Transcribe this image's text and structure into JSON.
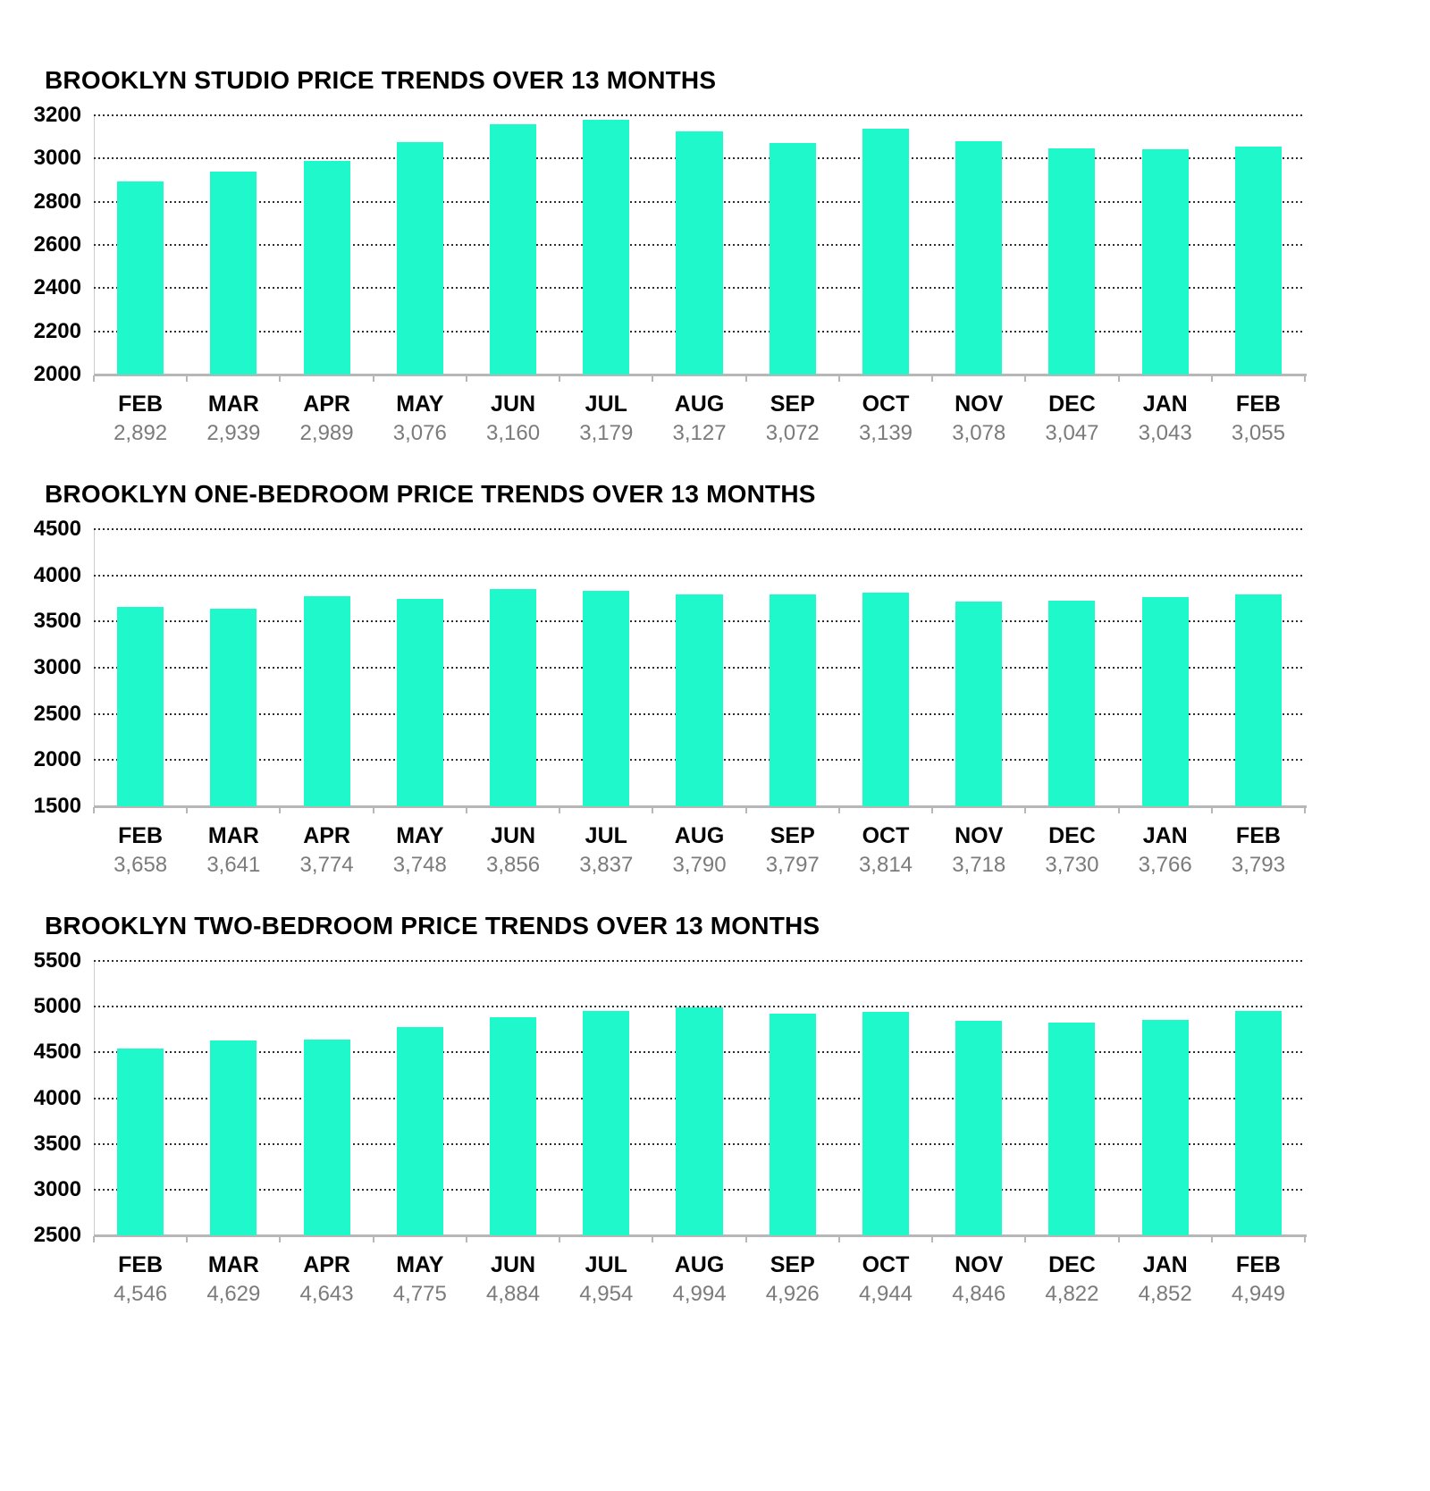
{
  "style": {
    "bar_color": "#1ef8cb",
    "title_color": "#000000",
    "month_label_color": "#060606",
    "value_label_color": "#7b7b7b",
    "gridline_color": "#2e2e2e",
    "axis_color": "#b7b7b7"
  },
  "chart_data": [
    {
      "type": "bar",
      "title": "BROOKLYN STUDIO PRICE TRENDS OVER 13 MONTHS",
      "categories": [
        "FEB",
        "MAR",
        "APR",
        "MAY",
        "JUN",
        "JUL",
        "AUG",
        "SEP",
        "OCT",
        "NOV",
        "DEC",
        "JAN",
        "FEB"
      ],
      "values": [
        2892,
        2939,
        2989,
        3076,
        3160,
        3179,
        3127,
        3072,
        3139,
        3078,
        3047,
        3043,
        3055
      ],
      "value_labels": [
        "2,892",
        "2,939",
        "2,989",
        "3,076",
        "3,160",
        "3,179",
        "3,127",
        "3,072",
        "3,139",
        "3,078",
        "3,047",
        "3,043",
        "3,055"
      ],
      "xlabel": "",
      "ylabel": "",
      "ylim": [
        2000,
        3200
      ],
      "yticks": [
        2000,
        2200,
        2400,
        2600,
        2800,
        3000,
        3200
      ],
      "grid": "dotted horizontal",
      "legend": "none"
    },
    {
      "type": "bar",
      "title": "BROOKLYN ONE-BEDROOM PRICE TRENDS OVER 13 MONTHS",
      "categories": [
        "FEB",
        "MAR",
        "APR",
        "MAY",
        "JUN",
        "JUL",
        "AUG",
        "SEP",
        "OCT",
        "NOV",
        "DEC",
        "JAN",
        "FEB"
      ],
      "values": [
        3658,
        3641,
        3774,
        3748,
        3856,
        3837,
        3790,
        3797,
        3814,
        3718,
        3730,
        3766,
        3793
      ],
      "value_labels": [
        "3,658",
        "3,641",
        "3,774",
        "3,748",
        "3,856",
        "3,837",
        "3,790",
        "3,797",
        "3,814",
        "3,718",
        "3,730",
        "3,766",
        "3,793"
      ],
      "xlabel": "",
      "ylabel": "",
      "ylim": [
        1500,
        4500
      ],
      "yticks": [
        1500,
        2000,
        2500,
        3000,
        3500,
        4000,
        4500
      ],
      "grid": "dotted horizontal",
      "legend": "none"
    },
    {
      "type": "bar",
      "title": "BROOKLYN TWO-BEDROOM PRICE TRENDS OVER 13 MONTHS",
      "categories": [
        "FEB",
        "MAR",
        "APR",
        "MAY",
        "JUN",
        "JUL",
        "AUG",
        "SEP",
        "OCT",
        "NOV",
        "DEC",
        "JAN",
        "FEB"
      ],
      "values": [
        4546,
        4629,
        4643,
        4775,
        4884,
        4954,
        4994,
        4926,
        4944,
        4846,
        4822,
        4852,
        4949
      ],
      "value_labels": [
        "4,546",
        "4,629",
        "4,643",
        "4,775",
        "4,884",
        "4,954",
        "4,994",
        "4,926",
        "4,944",
        "4,846",
        "4,822",
        "4,852",
        "4,949"
      ],
      "xlabel": "",
      "ylabel": "",
      "ylim": [
        2500,
        5500
      ],
      "yticks": [
        2500,
        3000,
        3500,
        4000,
        4500,
        5000,
        5500
      ],
      "grid": "dotted horizontal",
      "legend": "none"
    }
  ]
}
